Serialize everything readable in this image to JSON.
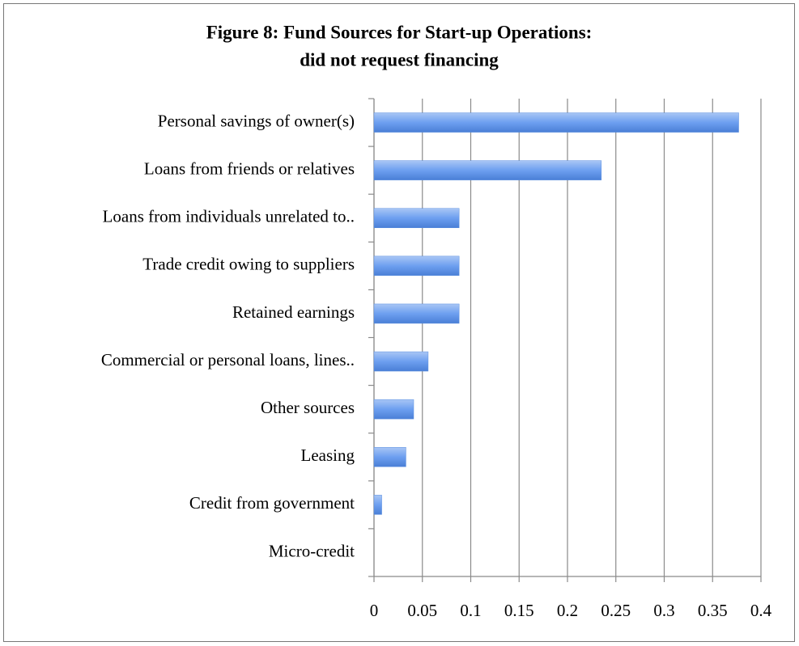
{
  "chart_data": {
    "type": "hbar",
    "title": [
      "Figure 8: Fund Sources for Start-up Operations:",
      "did not request financing"
    ],
    "categories": [
      "Personal savings of owner(s)",
      "Loans from friends or relatives",
      "Loans from individuals unrelated to..",
      "Trade credit owing to suppliers",
      "Retained earnings",
      "Commercial or personal loans, lines..",
      "Other sources",
      "Leasing",
      "Credit from government",
      "Micro-credit"
    ],
    "values": [
      0.377,
      0.235,
      0.088,
      0.088,
      0.088,
      0.056,
      0.041,
      0.033,
      0.008,
      0
    ],
    "color": "#5b8fe0",
    "xlim": [
      0,
      0.4
    ],
    "xticks": [
      0,
      0.05,
      0.1,
      0.15,
      0.2,
      0.25,
      0.3,
      0.35,
      0.4
    ],
    "grid": true
  }
}
